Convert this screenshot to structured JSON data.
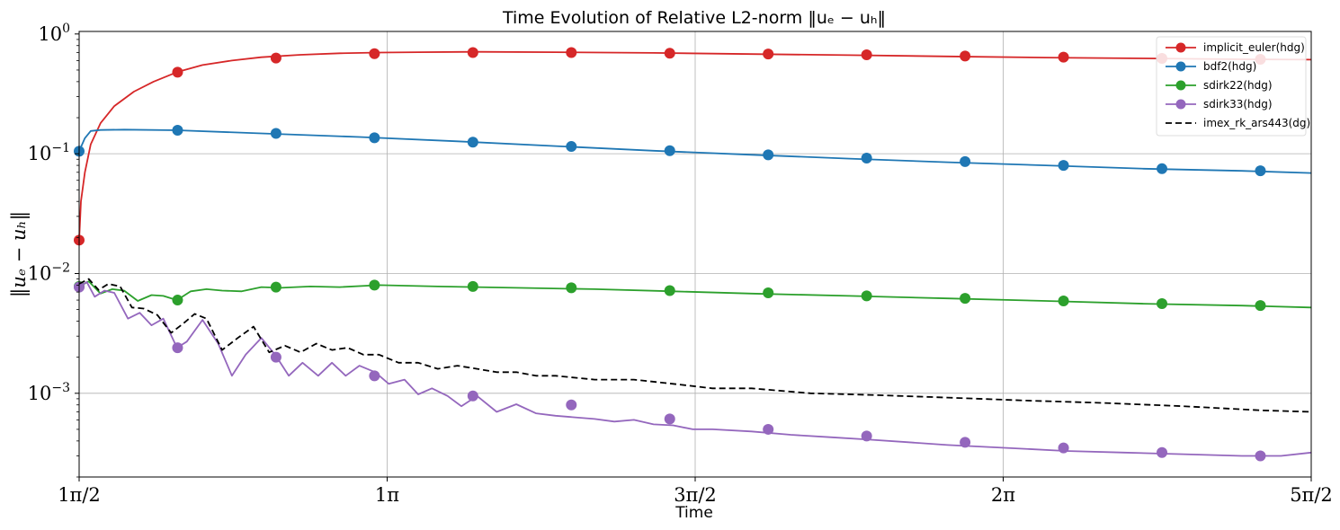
{
  "chart_data": {
    "type": "line",
    "title": "Time Evolution of Relative L2-norm ‖uₑ − uₕ‖",
    "xlabel": "Time",
    "ylabel": "‖uₑ − uₕ‖",
    "xscale": "linear",
    "yscale": "log",
    "xlim": [
      1.5708,
      7.854
    ],
    "ylim": [
      0.0002,
      1.05
    ],
    "grid": true,
    "legend_position": "top-right",
    "x_ticks": [
      {
        "value": 1.5708,
        "label": "1π/2"
      },
      {
        "value": 3.1416,
        "label": "1π"
      },
      {
        "value": 4.7124,
        "label": "3π/2"
      },
      {
        "value": 6.2832,
        "label": "2π"
      },
      {
        "value": 7.854,
        "label": "5π/2"
      }
    ],
    "y_ticks": [
      {
        "value": 1,
        "base": "10",
        "exp": "0"
      },
      {
        "value": 0.1,
        "base": "10",
        "exp": "−1"
      },
      {
        "value": 0.01,
        "base": "10",
        "exp": "−2"
      },
      {
        "value": 0.001,
        "base": "10",
        "exp": "−3"
      }
    ],
    "series": [
      {
        "name": "implicit_euler(hdg)",
        "color": "#d62728",
        "dash": "solid",
        "marker": "circle",
        "x": [
          1.5708,
          1.58,
          1.6,
          1.63,
          1.68,
          1.75,
          1.85,
          1.95,
          2.07,
          2.2,
          2.35,
          2.5,
          2.7,
          2.9,
          3.1,
          3.3,
          3.6,
          4.0,
          4.5,
          5.0,
          5.5,
          6.0,
          6.5,
          7.0,
          7.5,
          7.854
        ],
        "y": [
          0.019,
          0.04,
          0.07,
          0.12,
          0.18,
          0.25,
          0.33,
          0.4,
          0.48,
          0.55,
          0.6,
          0.64,
          0.67,
          0.69,
          0.7,
          0.705,
          0.71,
          0.705,
          0.695,
          0.68,
          0.665,
          0.65,
          0.635,
          0.625,
          0.615,
          0.61
        ],
        "markers_x": [
          1.5708,
          2.0728,
          2.5748,
          3.0768,
          3.5788,
          4.0808,
          4.5828,
          5.0848,
          5.5868,
          6.0888,
          6.5908,
          7.0928,
          7.5948
        ],
        "markers_y": [
          0.019,
          0.48,
          0.63,
          0.685,
          0.7,
          0.7,
          0.69,
          0.68,
          0.67,
          0.655,
          0.64,
          0.625,
          0.615
        ]
      },
      {
        "name": "bdf2(hdg)",
        "color": "#1f77b4",
        "dash": "solid",
        "marker": "circle",
        "x": [
          1.5708,
          1.6,
          1.63,
          1.68,
          1.8,
          2.07,
          2.5,
          3.0,
          3.5,
          4.0,
          4.5,
          5.0,
          5.5,
          6.0,
          6.5,
          7.0,
          7.5,
          7.854
        ],
        "y": [
          0.105,
          0.135,
          0.155,
          0.158,
          0.159,
          0.157,
          0.148,
          0.138,
          0.127,
          0.116,
          0.106,
          0.098,
          0.091,
          0.085,
          0.08,
          0.075,
          0.072,
          0.069
        ],
        "markers_x": [
          1.5708,
          2.0728,
          2.5748,
          3.0768,
          3.5788,
          4.0808,
          4.5828,
          5.0848,
          5.5868,
          6.0888,
          6.5908,
          7.0928,
          7.5948
        ],
        "markers_y": [
          0.105,
          0.157,
          0.148,
          0.136,
          0.125,
          0.115,
          0.106,
          0.098,
          0.092,
          0.086,
          0.08,
          0.075,
          0.072
        ]
      },
      {
        "name": "sdirk22(hdg)",
        "color": "#2ca02c",
        "dash": "solid",
        "marker": "circle",
        "x": [
          1.5708,
          1.62,
          1.68,
          1.74,
          1.8,
          1.87,
          1.94,
          2.0,
          2.07,
          2.14,
          2.22,
          2.3,
          2.4,
          2.5,
          2.6,
          2.75,
          2.9,
          3.1,
          3.4,
          3.8,
          4.2,
          4.6,
          5.0,
          5.5,
          6.0,
          6.5,
          7.0,
          7.5,
          7.854
        ],
        "y": [
          0.0078,
          0.0086,
          0.0068,
          0.0074,
          0.0072,
          0.0059,
          0.0066,
          0.0065,
          0.006,
          0.0071,
          0.0074,
          0.0072,
          0.0071,
          0.0077,
          0.0076,
          0.0078,
          0.0077,
          0.008,
          0.0078,
          0.0076,
          0.0074,
          0.0071,
          0.0068,
          0.0065,
          0.0062,
          0.0059,
          0.0056,
          0.0054,
          0.0052
        ],
        "markers_x": [
          1.5708,
          2.0728,
          2.5748,
          3.0768,
          3.5788,
          4.0808,
          4.5828,
          5.0848,
          5.5868,
          6.0888,
          6.5908,
          7.0928,
          7.5948
        ],
        "markers_y": [
          0.0078,
          0.006,
          0.0077,
          0.008,
          0.0078,
          0.0076,
          0.0072,
          0.0069,
          0.0065,
          0.0062,
          0.0059,
          0.0056,
          0.0054
        ]
      },
      {
        "name": "sdirk33(hdg)",
        "color": "#9467bd",
        "dash": "solid",
        "marker": "circle",
        "x": [
          1.5708,
          1.61,
          1.65,
          1.7,
          1.75,
          1.82,
          1.88,
          1.94,
          2.0,
          2.07,
          2.12,
          2.2,
          2.28,
          2.35,
          2.42,
          2.5,
          2.57,
          2.64,
          2.71,
          2.79,
          2.86,
          2.93,
          3.0,
          3.08,
          3.15,
          3.23,
          3.3,
          3.37,
          3.45,
          3.52,
          3.6,
          3.7,
          3.8,
          3.9,
          4.0,
          4.1,
          4.2,
          4.3,
          4.4,
          4.5,
          4.6,
          4.7,
          4.8,
          5.0,
          5.2,
          5.4,
          5.6,
          5.8,
          6.0,
          6.3,
          6.6,
          6.9,
          7.2,
          7.5,
          7.7,
          7.854
        ],
        "y": [
          0.0077,
          0.0085,
          0.0064,
          0.0072,
          0.0069,
          0.0042,
          0.0047,
          0.0037,
          0.0042,
          0.0024,
          0.0027,
          0.0041,
          0.0026,
          0.0014,
          0.0021,
          0.0029,
          0.0021,
          0.0014,
          0.0018,
          0.0014,
          0.0018,
          0.0014,
          0.0017,
          0.0015,
          0.0012,
          0.0013,
          0.00098,
          0.0011,
          0.00095,
          0.00078,
          0.00095,
          0.0007,
          0.00081,
          0.00068,
          0.00065,
          0.00063,
          0.00061,
          0.00058,
          0.0006,
          0.00055,
          0.00054,
          0.0005,
          0.0005,
          0.00048,
          0.00045,
          0.00043,
          0.00041,
          0.00039,
          0.00037,
          0.00035,
          0.00033,
          0.00032,
          0.00031,
          0.0003,
          0.0003,
          0.00032
        ],
        "markers_x": [
          1.5708,
          2.0728,
          2.5748,
          3.0768,
          3.5788,
          4.0808,
          4.5828,
          5.0848,
          5.5868,
          6.0888,
          6.5908,
          7.0928,
          7.5948
        ],
        "markers_y": [
          0.0077,
          0.0024,
          0.002,
          0.0014,
          0.00095,
          0.0008,
          0.00061,
          0.0005,
          0.00044,
          0.00039,
          0.00035,
          0.00032,
          0.0003
        ]
      },
      {
        "name": "imex_rk_ars443(dg)",
        "color": "#000000",
        "dash": "dashed",
        "marker": "none",
        "x": [
          1.5708,
          1.62,
          1.67,
          1.72,
          1.78,
          1.84,
          1.9,
          1.97,
          2.04,
          2.1,
          2.16,
          2.22,
          2.3,
          2.38,
          2.46,
          2.54,
          2.62,
          2.7,
          2.78,
          2.86,
          2.94,
          3.02,
          3.1,
          3.2,
          3.3,
          3.4,
          3.5,
          3.6,
          3.7,
          3.8,
          3.9,
          4.0,
          4.2,
          4.4,
          4.6,
          4.8,
          5.0,
          5.3,
          5.6,
          6.0,
          6.4,
          6.8,
          7.2,
          7.6,
          7.854
        ],
        "y": [
          0.0082,
          0.009,
          0.0073,
          0.0082,
          0.0078,
          0.0052,
          0.0051,
          0.0045,
          0.0032,
          0.0038,
          0.0046,
          0.0042,
          0.0023,
          0.0029,
          0.0036,
          0.0022,
          0.0025,
          0.0022,
          0.0026,
          0.0023,
          0.0024,
          0.0021,
          0.0021,
          0.0018,
          0.0018,
          0.0016,
          0.0017,
          0.0016,
          0.0015,
          0.0015,
          0.0014,
          0.0014,
          0.0013,
          0.0013,
          0.0012,
          0.0011,
          0.0011,
          0.001,
          0.00097,
          0.00092,
          0.00087,
          0.00083,
          0.00078,
          0.00072,
          0.0007
        ]
      }
    ]
  }
}
